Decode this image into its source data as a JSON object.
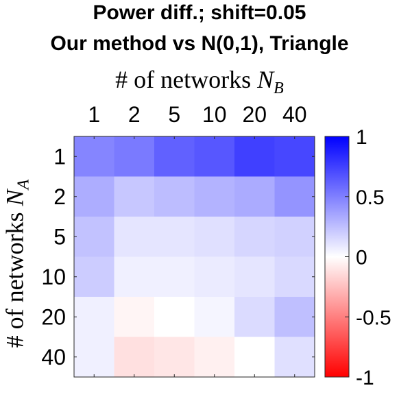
{
  "chart_data": {
    "type": "heatmap",
    "title": [
      "Power diff.; shift=0.05",
      "Our method vs N(0,1), Triangle"
    ],
    "xlabel": "# of networks N_B",
    "ylabel": "# of networks N_A",
    "x_categories": [
      "1",
      "2",
      "5",
      "10",
      "20",
      "40"
    ],
    "y_categories": [
      "1",
      "2",
      "5",
      "10",
      "20",
      "40"
    ],
    "values": [
      [
        0.48,
        0.52,
        0.62,
        0.66,
        0.75,
        0.72
      ],
      [
        0.32,
        0.22,
        0.26,
        0.3,
        0.33,
        0.42
      ],
      [
        0.24,
        0.1,
        0.1,
        0.12,
        0.16,
        0.18
      ],
      [
        0.2,
        0.06,
        0.06,
        0.08,
        0.1,
        0.15
      ],
      [
        0.06,
        -0.04,
        0.0,
        0.04,
        0.14,
        0.25
      ],
      [
        0.06,
        -0.12,
        -0.1,
        -0.06,
        0.0,
        0.12
      ]
    ],
    "colorbar": {
      "range": [
        -1,
        1
      ],
      "ticks": [
        1,
        0.5,
        0,
        -0.5,
        -1
      ],
      "tick_labels": [
        "1",
        "0.5",
        "0",
        "-0.5",
        "-1"
      ],
      "colormap": "red-white-blue",
      "low_color": "#ff0000",
      "mid_color": "#ffffff",
      "high_color": "#0000ff"
    },
    "grid": false
  }
}
